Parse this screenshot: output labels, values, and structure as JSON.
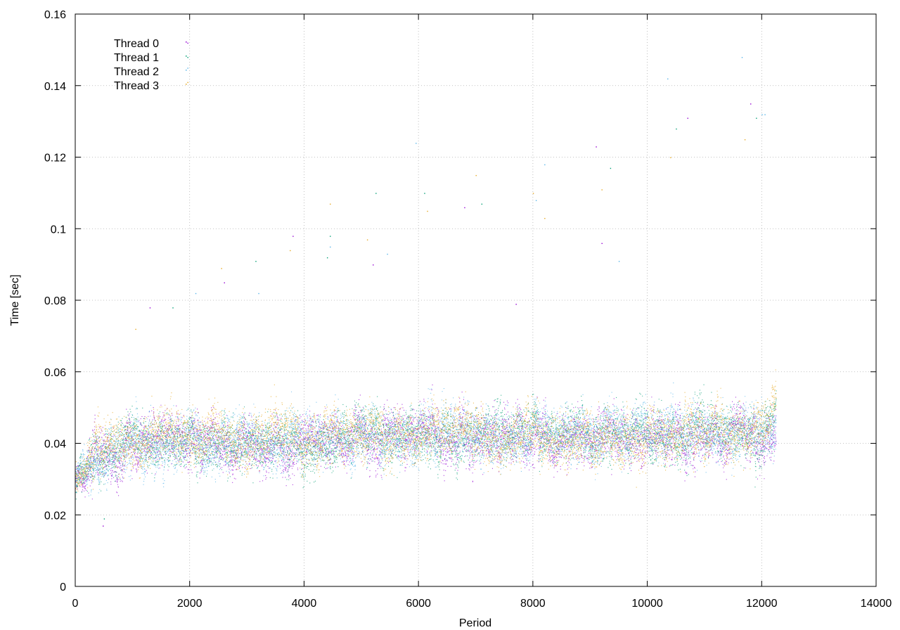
{
  "chart_data": {
    "type": "scatter",
    "title": "",
    "xlabel": "Period",
    "ylabel": "Time [sec]",
    "xlim": [
      0,
      14000
    ],
    "ylim": [
      0,
      0.16
    ],
    "x_ticks": [
      0,
      2000,
      4000,
      6000,
      8000,
      10000,
      12000,
      14000
    ],
    "y_ticks": [
      0,
      0.02,
      0.04,
      0.06,
      0.08,
      0.1,
      0.12,
      0.14,
      0.16
    ],
    "x_tick_labels": [
      "0",
      "2000",
      "4000",
      "6000",
      "8000",
      "10000",
      "12000",
      "14000"
    ],
    "y_tick_labels": [
      "0",
      "0.02",
      "0.04",
      "0.06",
      "0.08",
      "0.1",
      "0.12",
      "0.14",
      "0.16"
    ],
    "grid": true,
    "grid_style": "dotted",
    "legend_position": "top-left",
    "point_count_per_series": 12250,
    "series": [
      {
        "name": "Thread 0",
        "color": "#9400d3",
        "profile": [
          [
            0,
            0.03
          ],
          [
            300,
            0.038
          ],
          [
            1000,
            0.04
          ],
          [
            2000,
            0.04
          ],
          [
            4000,
            0.041
          ],
          [
            6000,
            0.042
          ],
          [
            8000,
            0.042
          ],
          [
            10000,
            0.042
          ],
          [
            12000,
            0.043
          ],
          [
            12250,
            0.046
          ]
        ],
        "outliers": [
          [
            1960,
            0.152
          ],
          [
            7700,
            0.079
          ],
          [
            9100,
            0.123
          ],
          [
            11800,
            0.135
          ]
        ]
      },
      {
        "name": "Thread 1",
        "color": "#009e73",
        "profile": [
          [
            0,
            0.031
          ],
          [
            300,
            0.038
          ],
          [
            1000,
            0.04
          ],
          [
            2000,
            0.041
          ],
          [
            4000,
            0.041
          ],
          [
            6000,
            0.042
          ],
          [
            8000,
            0.043
          ],
          [
            10000,
            0.043
          ],
          [
            12000,
            0.044
          ],
          [
            12250,
            0.047
          ]
        ],
        "outliers": [
          [
            1960,
            0.148
          ],
          [
            4450,
            0.098
          ],
          [
            6100,
            0.11
          ],
          [
            10500,
            0.128
          ]
        ]
      },
      {
        "name": "Thread 2",
        "color": "#56b4e9",
        "profile": [
          [
            0,
            0.03
          ],
          [
            300,
            0.037
          ],
          [
            1000,
            0.039
          ],
          [
            2000,
            0.04
          ],
          [
            4000,
            0.041
          ],
          [
            6000,
            0.043
          ],
          [
            8000,
            0.043
          ],
          [
            10000,
            0.043
          ],
          [
            12000,
            0.043
          ],
          [
            12250,
            0.045
          ]
        ],
        "outliers": [
          [
            1960,
            0.145
          ],
          [
            5950,
            0.124
          ],
          [
            8200,
            0.118
          ],
          [
            10350,
            0.142
          ],
          [
            11650,
            0.148
          ],
          [
            12000,
            0.132
          ]
        ]
      },
      {
        "name": "Thread 3",
        "color": "#e6a820",
        "profile": [
          [
            0,
            0.031
          ],
          [
            300,
            0.038
          ],
          [
            1000,
            0.041
          ],
          [
            2000,
            0.041
          ],
          [
            4000,
            0.042
          ],
          [
            6000,
            0.042
          ],
          [
            8000,
            0.042
          ],
          [
            10000,
            0.042
          ],
          [
            12000,
            0.043
          ],
          [
            12250,
            0.048
          ]
        ],
        "outliers": [
          [
            1960,
            0.141
          ],
          [
            4450,
            0.107
          ],
          [
            7000,
            0.115
          ],
          [
            8000,
            0.11
          ],
          [
            9200,
            0.111
          ],
          [
            11700,
            0.125
          ]
        ]
      }
    ],
    "extra_outliers": [
      [
        1300,
        0.078
      ],
      [
        1700,
        0.078
      ],
      [
        2100,
        0.082
      ],
      [
        2550,
        0.089
      ],
      [
        2600,
        0.085
      ],
      [
        3150,
        0.091
      ],
      [
        3200,
        0.082
      ],
      [
        3750,
        0.094
      ],
      [
        3800,
        0.098
      ],
      [
        4400,
        0.092
      ],
      [
        4450,
        0.095
      ],
      [
        5100,
        0.097
      ],
      [
        5200,
        0.09
      ],
      [
        5250,
        0.11
      ],
      [
        5450,
        0.093
      ],
      [
        6150,
        0.105
      ],
      [
        6800,
        0.106
      ],
      [
        7100,
        0.107
      ],
      [
        8050,
        0.108
      ],
      [
        8200,
        0.103
      ],
      [
        9200,
        0.096
      ],
      [
        9350,
        0.117
      ],
      [
        9500,
        0.091
      ],
      [
        10400,
        0.12
      ],
      [
        10700,
        0.131
      ],
      [
        11900,
        0.131
      ],
      [
        12050,
        0.132
      ],
      [
        1050,
        0.072
      ],
      [
        480,
        0.017
      ],
      [
        500,
        0.019
      ]
    ]
  }
}
